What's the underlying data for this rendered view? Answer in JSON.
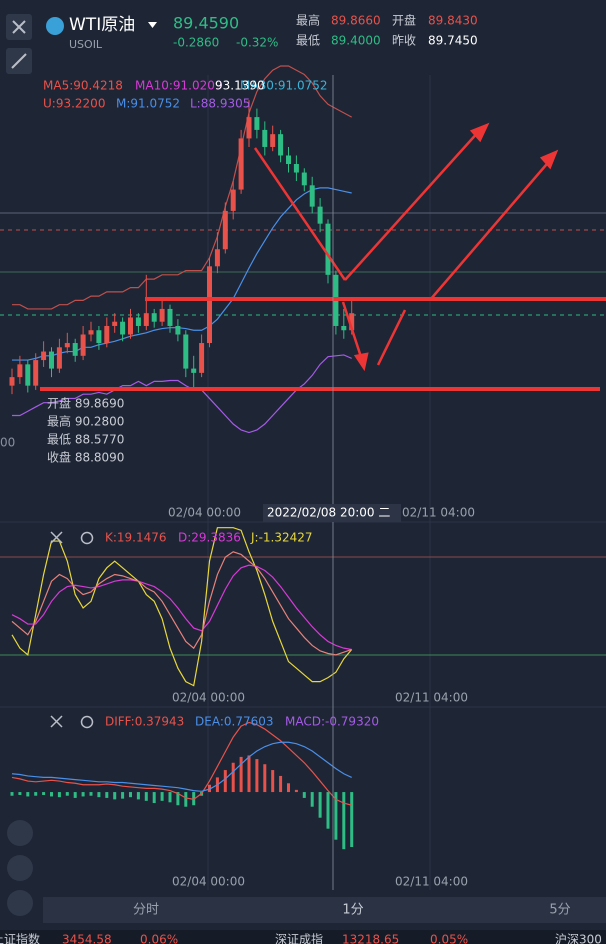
{
  "header": {
    "symbol": "WTI原油",
    "code": "USOIL",
    "price": "89.4590",
    "change": "-0.2860",
    "change_pct": "-0.32%",
    "high_label": "最高",
    "high": "89.8660",
    "open_label": "开盘",
    "open": "89.8430",
    "low_label": "最低",
    "low": "89.4000",
    "prev_label": "昨收",
    "prev": "89.7450"
  },
  "main": {
    "ma5": "MA5:90.4218",
    "ma10": "MA10:91.0209",
    "ma30": "MA30:91.0752",
    "cross_price": "93.1390",
    "boll_u": "U:93.2200",
    "boll_m": "M:91.0752",
    "boll_l": "L:88.9305",
    "axis_fragment": "00",
    "tooltip": [
      "开盘 89.8690",
      "最高 90.2800",
      "最低 88.5770",
      "收盘 88.8090"
    ],
    "x_labels": [
      "02/04 00:00",
      "2022/02/08 20:00 二",
      "02/11 04:00"
    ]
  },
  "kline": {
    "ylim": [
      87.2,
      92.42
    ],
    "candles": [
      [
        88.6,
        88.8,
        88.5,
        88.7
      ],
      [
        88.7,
        88.95,
        88.62,
        88.85
      ],
      [
        88.85,
        88.9,
        88.52,
        88.6
      ],
      [
        88.6,
        88.98,
        88.55,
        88.9
      ],
      [
        88.9,
        89.12,
        88.82,
        89.0
      ],
      [
        89.0,
        89.05,
        88.7,
        88.8
      ],
      [
        88.8,
        89.15,
        88.75,
        89.05
      ],
      [
        89.05,
        89.22,
        88.98,
        89.1
      ],
      [
        89.1,
        89.15,
        88.88,
        88.95
      ],
      [
        88.95,
        89.3,
        88.9,
        89.2
      ],
      [
        89.2,
        89.35,
        89.12,
        89.25
      ],
      [
        89.25,
        89.3,
        89.02,
        89.1
      ],
      [
        89.1,
        89.4,
        89.05,
        89.3
      ],
      [
        89.3,
        89.45,
        89.22,
        89.35
      ],
      [
        89.35,
        89.4,
        89.12,
        89.2
      ],
      [
        89.2,
        89.5,
        89.15,
        89.4
      ],
      [
        89.4,
        89.45,
        89.22,
        89.3
      ],
      [
        89.3,
        89.9,
        89.25,
        89.45
      ],
      [
        89.45,
        89.5,
        89.28,
        89.35
      ],
      [
        89.35,
        89.6,
        89.3,
        89.5
      ],
      [
        89.5,
        89.55,
        89.22,
        89.3
      ],
      [
        89.3,
        89.38,
        89.12,
        89.2
      ],
      [
        89.2,
        89.25,
        88.7,
        88.8
      ],
      [
        88.8,
        88.95,
        88.57,
        88.75
      ],
      [
        88.75,
        89.2,
        88.7,
        89.1
      ],
      [
        89.1,
        90.1,
        89.05,
        90.0
      ],
      [
        90.0,
        90.4,
        89.92,
        90.2
      ],
      [
        90.2,
        90.75,
        90.15,
        90.65
      ],
      [
        90.65,
        91.0,
        90.55,
        90.9
      ],
      [
        90.9,
        91.6,
        90.85,
        91.5
      ],
      [
        91.5,
        91.95,
        91.4,
        91.75
      ],
      [
        91.75,
        91.85,
        91.5,
        91.6
      ],
      [
        91.6,
        91.7,
        91.3,
        91.4
      ],
      [
        91.4,
        91.65,
        91.35,
        91.55
      ],
      [
        91.55,
        91.6,
        91.22,
        91.3
      ],
      [
        91.3,
        91.4,
        91.1,
        91.2
      ],
      [
        91.2,
        91.3,
        91.0,
        91.1
      ],
      [
        91.1,
        91.15,
        90.88,
        90.95
      ],
      [
        90.95,
        91.05,
        90.62,
        90.7
      ],
      [
        90.7,
        90.8,
        90.4,
        90.5
      ],
      [
        90.5,
        90.55,
        89.8,
        89.9
      ],
      [
        89.9,
        89.95,
        89.2,
        89.3
      ],
      [
        89.3,
        89.5,
        89.15,
        89.25
      ],
      [
        89.25,
        89.6,
        89.2,
        89.45
      ]
    ],
    "boll_upper": [
      89.55,
      89.55,
      89.5,
      89.5,
      89.5,
      89.5,
      89.55,
      89.55,
      89.6,
      89.6,
      89.65,
      89.65,
      89.7,
      89.7,
      89.7,
      89.75,
      89.75,
      89.85,
      89.85,
      89.9,
      89.9,
      89.9,
      89.95,
      89.95,
      89.95,
      90.1,
      90.35,
      90.7,
      91.0,
      91.4,
      91.8,
      92.05,
      92.2,
      92.3,
      92.35,
      92.35,
      92.3,
      92.25,
      92.15,
      92.0,
      91.9,
      91.85,
      91.8,
      91.75
    ],
    "boll_mid": [
      88.9,
      88.9,
      88.9,
      88.92,
      88.95,
      88.95,
      88.98,
      89.0,
      89.0,
      89.05,
      89.05,
      89.08,
      89.1,
      89.12,
      89.15,
      89.18,
      89.2,
      89.22,
      89.25,
      89.27,
      89.28,
      89.28,
      89.27,
      89.25,
      89.25,
      89.3,
      89.38,
      89.5,
      89.62,
      89.8,
      89.98,
      90.15,
      90.3,
      90.45,
      90.58,
      90.68,
      90.78,
      90.85,
      90.9,
      90.92,
      90.92,
      90.9,
      90.88,
      90.86
    ],
    "boll_lower": [
      88.25,
      88.25,
      88.3,
      88.35,
      88.4,
      88.4,
      88.42,
      88.45,
      88.45,
      88.5,
      88.5,
      88.52,
      88.5,
      88.55,
      88.6,
      88.6,
      88.65,
      88.6,
      88.65,
      88.65,
      88.66,
      88.66,
      88.6,
      88.55,
      88.55,
      88.45,
      88.35,
      88.25,
      88.15,
      88.08,
      88.05,
      88.08,
      88.15,
      88.25,
      88.35,
      88.45,
      88.55,
      88.62,
      88.72,
      88.85,
      88.94,
      88.95,
      88.96,
      88.92
    ]
  },
  "kdj": {
    "k_label": "K:19.1476",
    "d_label": "D:29.3836",
    "j_label": "J:-1.32427",
    "x_labels": [
      "02/04 00:00",
      "02/11 04:00"
    ],
    "ylim": [
      -15,
      112
    ],
    "k": [
      40,
      35,
      30,
      40,
      55,
      70,
      75,
      72,
      65,
      60,
      62,
      68,
      72,
      75,
      74,
      72,
      70,
      65,
      62,
      55,
      45,
      35,
      25,
      20,
      30,
      55,
      75,
      88,
      92,
      90,
      85,
      80,
      72,
      62,
      52,
      42,
      35,
      28,
      22,
      18,
      16,
      15,
      17,
      19
    ],
    "d": [
      45,
      42,
      38,
      38,
      45,
      55,
      62,
      66,
      67,
      66,
      65,
      66,
      68,
      70,
      71,
      71,
      70,
      68,
      66,
      62,
      57,
      50,
      42,
      35,
      33,
      40,
      52,
      64,
      74,
      80,
      82,
      81,
      78,
      73,
      66,
      58,
      50,
      43,
      36,
      30,
      25,
      22,
      20,
      19
    ],
    "j": [
      30,
      20,
      15,
      45,
      75,
      100,
      100,
      85,
      60,
      50,
      55,
      72,
      80,
      85,
      80,
      75,
      70,
      60,
      55,
      42,
      20,
      5,
      -5,
      -8,
      25,
      85,
      110,
      110,
      110,
      108,
      92,
      78,
      60,
      40,
      25,
      10,
      5,
      0,
      -5,
      -5,
      -2,
      2,
      12,
      19
    ]
  },
  "macd": {
    "diff_label": "DIFF:0.37943",
    "dea_label": "DEA:0.77603",
    "macd_label": "MACD:-0.79320",
    "x_labels": [
      "02/04 00:00",
      "02/11 04:00"
    ],
    "ylim": [
      -0.9,
      1.12
    ],
    "hist": [
      -0.05,
      -0.04,
      -0.06,
      -0.05,
      -0.04,
      -0.06,
      -0.07,
      -0.05,
      -0.08,
      -0.06,
      -0.05,
      -0.07,
      -0.08,
      -0.1,
      -0.09,
      -0.07,
      -0.1,
      -0.12,
      -0.15,
      -0.12,
      -0.14,
      -0.18,
      -0.2,
      -0.18,
      -0.05,
      0.1,
      0.2,
      0.3,
      0.4,
      0.48,
      0.5,
      0.45,
      0.38,
      0.3,
      0.22,
      0.12,
      0.03,
      -0.08,
      -0.2,
      -0.35,
      -0.5,
      -0.65,
      -0.78,
      -0.75
    ],
    "diff": [
      0.2,
      0.18,
      0.15,
      0.14,
      0.15,
      0.16,
      0.15,
      0.13,
      0.12,
      0.1,
      0.1,
      0.1,
      0.11,
      0.1,
      0.08,
      0.07,
      0.06,
      0.05,
      0.05,
      0.04,
      0.02,
      -0.02,
      -0.08,
      -0.1,
      -0.02,
      0.15,
      0.35,
      0.55,
      0.75,
      0.9,
      0.95,
      0.92,
      0.86,
      0.78,
      0.7,
      0.6,
      0.5,
      0.4,
      0.28,
      0.15,
      0.02,
      -0.1,
      -0.15,
      -0.18
    ],
    "dea": [
      0.25,
      0.24,
      0.22,
      0.21,
      0.2,
      0.2,
      0.19,
      0.18,
      0.17,
      0.16,
      0.15,
      0.14,
      0.14,
      0.13,
      0.13,
      0.12,
      0.11,
      0.1,
      0.09,
      0.08,
      0.07,
      0.06,
      0.04,
      0.02,
      0.01,
      0.04,
      0.1,
      0.18,
      0.28,
      0.38,
      0.48,
      0.56,
      0.62,
      0.66,
      0.68,
      0.68,
      0.66,
      0.62,
      0.56,
      0.48,
      0.4,
      0.32,
      0.25,
      0.2
    ]
  },
  "tabs": [
    "分时",
    "1分",
    "5分"
  ],
  "ticker": [
    "上证指数",
    "3454.58",
    "0.06%",
    "深证成指",
    "13218.65",
    "0.05%",
    "沪深300"
  ]
}
